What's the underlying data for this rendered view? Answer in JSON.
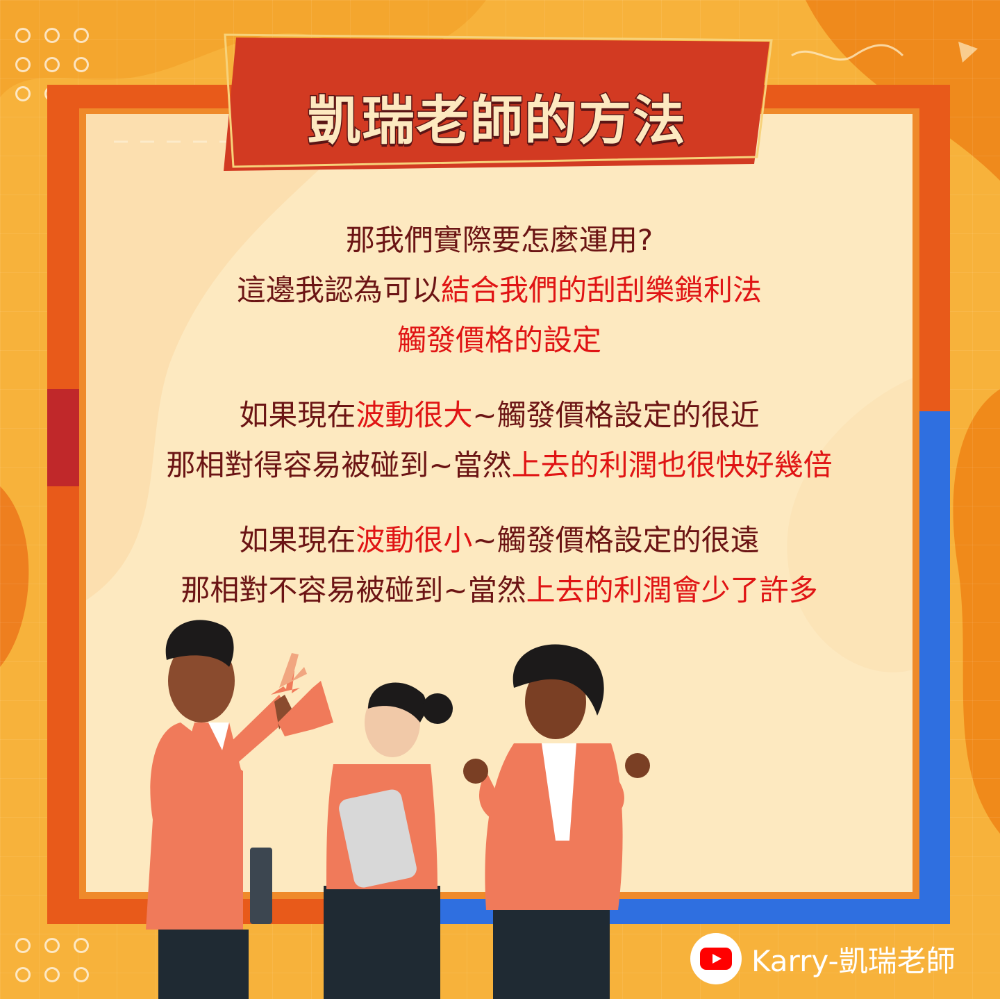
{
  "title": "凱瑞老師的方法",
  "paragraphs": [
    [
      [
        {
          "t": "那我們實際要怎麼運用?",
          "hl": false
        }
      ],
      [
        {
          "t": "這邊我認為可以",
          "hl": false
        },
        {
          "t": "結合我們的刮刮樂鎖利法",
          "hl": true
        }
      ],
      [
        {
          "t": "觸發價格的設定",
          "hl": true
        }
      ]
    ],
    [
      [
        {
          "t": "如果現在",
          "hl": false
        },
        {
          "t": "波動很大",
          "hl": true
        },
        {
          "t": "~觸發價格設定的很近",
          "hl": false
        }
      ],
      [
        {
          "t": "那相對得容易被碰到~當然",
          "hl": false
        },
        {
          "t": "上去的利潤也很快好幾倍",
          "hl": true
        }
      ]
    ],
    [
      [
        {
          "t": "如果現在",
          "hl": false
        },
        {
          "t": "波動很小",
          "hl": true
        },
        {
          "t": "~觸發價格設定的很遠",
          "hl": false
        }
      ],
      [
        {
          "t": "那相對不容易被碰到~當然",
          "hl": false
        },
        {
          "t": "上去的利潤會少了許多",
          "hl": true
        }
      ]
    ]
  ],
  "footer": {
    "channel_label": "Karry-凱瑞老師",
    "icon": "youtube-icon"
  },
  "colors": {
    "text": "#6b1414",
    "highlight": "#e01414",
    "banner": "#d23a22",
    "panel": "#fde9c0"
  }
}
